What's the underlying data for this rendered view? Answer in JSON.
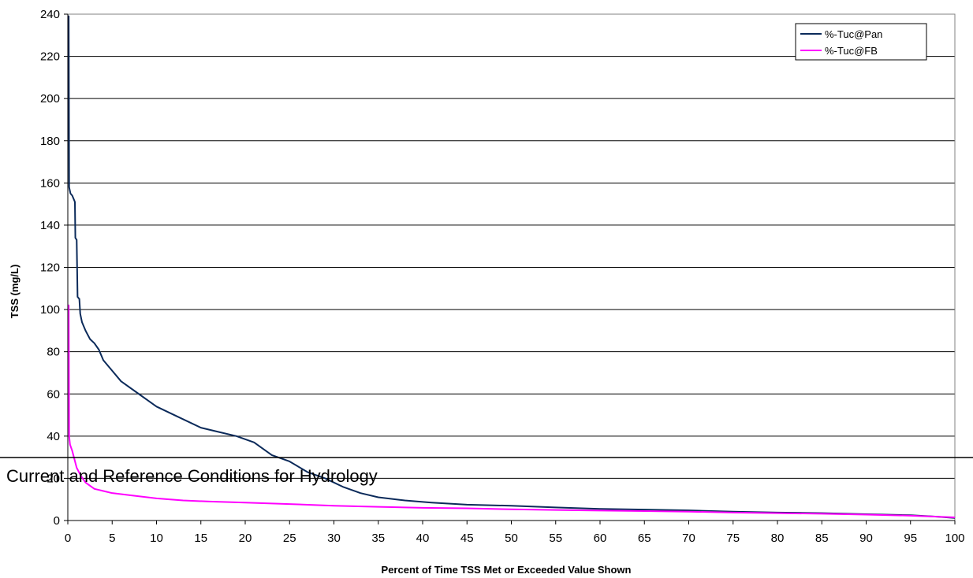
{
  "chart_data": {
    "type": "line",
    "title": "",
    "xlabel": "Percent of Time TSS Met or Exceeded Value Shown",
    "ylabel": "TSS (mg/L)",
    "xlim": [
      0,
      100
    ],
    "ylim": [
      0,
      240
    ],
    "x_ticks": [
      "0",
      "5",
      "10",
      "15",
      "20",
      "25",
      "30",
      "35",
      "40",
      "45",
      "50",
      "55",
      "60",
      "65",
      "70",
      "75",
      "80",
      "85",
      "90",
      "95",
      "100"
    ],
    "y_ticks": [
      "0",
      "20",
      "40",
      "60",
      "80",
      "100",
      "120",
      "140",
      "160",
      "180",
      "200",
      "220",
      "240"
    ],
    "grid": "horizontal",
    "legend_position": "top-right",
    "series": [
      {
        "name": "%-Tuc@Pan",
        "color": "#0b2a5a",
        "points": [
          [
            0,
            239
          ],
          [
            0.1,
            239
          ],
          [
            0.15,
            158
          ],
          [
            0.3,
            155
          ],
          [
            0.5,
            154
          ],
          [
            0.7,
            152
          ],
          [
            0.8,
            151
          ],
          [
            0.85,
            134
          ],
          [
            1,
            133
          ],
          [
            1.1,
            106
          ],
          [
            1.3,
            105
          ],
          [
            1.4,
            98
          ],
          [
            1.6,
            94
          ],
          [
            2,
            90
          ],
          [
            2.5,
            86
          ],
          [
            3,
            84
          ],
          [
            3.5,
            81
          ],
          [
            4,
            76
          ],
          [
            5,
            71
          ],
          [
            6,
            66
          ],
          [
            8,
            60
          ],
          [
            10,
            54
          ],
          [
            12,
            50
          ],
          [
            15,
            44
          ],
          [
            17,
            42
          ],
          [
            19,
            40
          ],
          [
            21,
            37
          ],
          [
            23,
            31
          ],
          [
            25,
            28
          ],
          [
            27,
            23
          ],
          [
            29,
            20
          ],
          [
            31,
            16
          ],
          [
            33,
            13
          ],
          [
            35,
            11
          ],
          [
            38,
            9.5
          ],
          [
            41,
            8.5
          ],
          [
            45,
            7.5
          ],
          [
            50,
            7
          ],
          [
            55,
            6.2
          ],
          [
            60,
            5.5
          ],
          [
            65,
            5.2
          ],
          [
            70,
            4.8
          ],
          [
            75,
            4.2
          ],
          [
            80,
            3.8
          ],
          [
            85,
            3.5
          ],
          [
            90,
            3
          ],
          [
            95,
            2.5
          ],
          [
            98,
            1.8
          ],
          [
            100,
            1.2
          ]
        ]
      },
      {
        "name": "%-Tuc@FB",
        "color": "#ff00ff",
        "points": [
          [
            0,
            102
          ],
          [
            0.1,
            102
          ],
          [
            0.15,
            40
          ],
          [
            0.25,
            36
          ],
          [
            0.5,
            33
          ],
          [
            1,
            25
          ],
          [
            1.5,
            21
          ],
          [
            2,
            18
          ],
          [
            3,
            15
          ],
          [
            4,
            14
          ],
          [
            5,
            13
          ],
          [
            7,
            12
          ],
          [
            10,
            10.5
          ],
          [
            13,
            9.5
          ],
          [
            16,
            9
          ],
          [
            20,
            8.5
          ],
          [
            25,
            7.8
          ],
          [
            30,
            7
          ],
          [
            35,
            6.5
          ],
          [
            40,
            6
          ],
          [
            45,
            5.8
          ],
          [
            50,
            5.3
          ],
          [
            55,
            5
          ],
          [
            60,
            4.7
          ],
          [
            65,
            4.5
          ],
          [
            70,
            4.2
          ],
          [
            75,
            3.8
          ],
          [
            80,
            3.5
          ],
          [
            85,
            3.2
          ],
          [
            90,
            2.8
          ],
          [
            95,
            2.3
          ],
          [
            100,
            1.5
          ]
        ]
      }
    ],
    "annotation": {
      "text": "Current and Reference Conditions for Hydrology"
    }
  }
}
